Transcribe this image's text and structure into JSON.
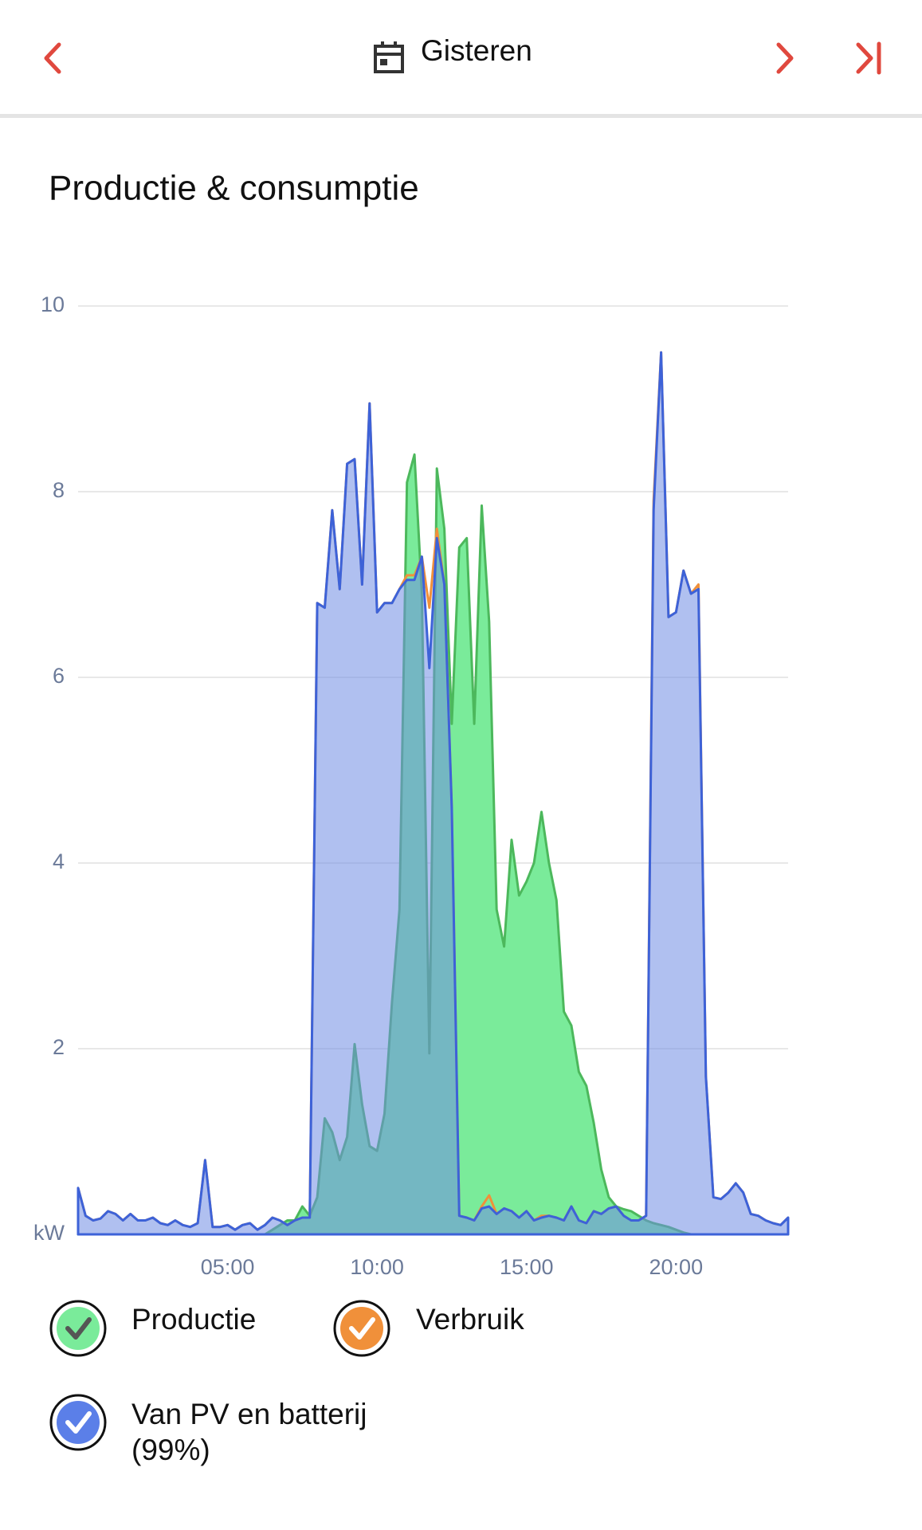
{
  "header": {
    "title": "Gisteren"
  },
  "chart_data": {
    "type": "area",
    "title": "Productie & consumptie",
    "x": [
      0,
      0.25,
      0.5,
      0.75,
      1,
      1.25,
      1.5,
      1.75,
      2,
      2.25,
      2.5,
      2.75,
      3,
      3.25,
      3.5,
      3.75,
      4,
      4.25,
      4.5,
      4.75,
      5,
      5.25,
      5.5,
      5.75,
      6,
      6.25,
      6.5,
      6.75,
      7,
      7.25,
      7.5,
      7.75,
      8,
      8.25,
      8.5,
      8.75,
      9,
      9.25,
      9.5,
      9.75,
      10,
      10.25,
      10.5,
      10.75,
      11,
      11.25,
      11.5,
      11.75,
      12,
      12.25,
      12.5,
      12.75,
      13,
      13.25,
      13.5,
      13.75,
      14,
      14.25,
      14.5,
      14.75,
      15,
      15.25,
      15.5,
      15.75,
      16,
      16.25,
      16.5,
      16.75,
      17,
      17.25,
      17.5,
      17.75,
      18,
      18.25,
      18.5,
      18.75,
      19,
      19.25,
      19.5,
      19.75,
      20,
      20.25,
      20.5,
      20.75,
      21,
      21.25,
      21.5,
      21.75,
      22,
      22.25,
      22.5,
      22.75,
      23,
      23.25,
      23.5,
      23.75
    ],
    "series": [
      {
        "name": "Productie",
        "color": "#4cb85c",
        "fill": "#7aeb9a",
        "values": [
          0,
          0,
          0,
          0,
          0,
          0,
          0,
          0,
          0,
          0,
          0,
          0,
          0,
          0,
          0,
          0,
          0,
          0,
          0,
          0,
          0,
          0,
          0,
          0,
          0,
          0,
          0.05,
          0.1,
          0.15,
          0.15,
          0.3,
          0.2,
          0.4,
          1.25,
          1.1,
          0.8,
          1.05,
          2.05,
          1.4,
          0.95,
          0.9,
          1.3,
          2.5,
          3.5,
          8.1,
          8.4,
          6.9,
          1.95,
          8.25,
          7.6,
          5.5,
          7.4,
          7.5,
          5.5,
          7.85,
          6.6,
          3.5,
          3.1,
          4.25,
          3.65,
          3.8,
          4.0,
          4.55,
          4.0,
          3.6,
          2.4,
          2.25,
          1.75,
          1.6,
          1.2,
          0.7,
          0.4,
          0.3,
          0.27,
          0.25,
          0.2,
          0.15,
          0.12,
          0.1,
          0.08,
          0.05,
          0.02,
          0,
          0,
          0,
          0,
          0,
          0,
          0,
          0,
          0,
          0,
          0,
          0,
          0,
          0
        ]
      },
      {
        "name": "Verbruik",
        "color": "#f0903a",
        "values": [
          0.5,
          0.2,
          0.15,
          0.17,
          0.25,
          0.22,
          0.15,
          0.22,
          0.15,
          0.15,
          0.18,
          0.12,
          0.1,
          0.15,
          0.1,
          0.08,
          0.12,
          0.8,
          0.08,
          0.08,
          0.1,
          0.05,
          0.1,
          0.12,
          0.05,
          0.1,
          0.18,
          0.15,
          0.1,
          0.15,
          0.18,
          0.18,
          6.8,
          6.75,
          7.8,
          6.95,
          8.3,
          8.35,
          7.0,
          8.95,
          6.7,
          6.8,
          6.8,
          6.95,
          7.1,
          7.1,
          7.3,
          6.75,
          7.6,
          7.0,
          4.6,
          0.2,
          0.18,
          0.15,
          0.3,
          0.42,
          0.22,
          0.28,
          0.25,
          0.18,
          0.25,
          0.15,
          0.2,
          0.2,
          0.18,
          0.15,
          0.3,
          0.15,
          0.12,
          0.25,
          0.22,
          0.28,
          0.3,
          0.2,
          0.15,
          0.15,
          0.2,
          7.9,
          9.5,
          6.65,
          6.7,
          7.15,
          6.9,
          7.0,
          1.7,
          0.4,
          0.38,
          0.45,
          0.55,
          0.45,
          0.22,
          0.2,
          0.15,
          0.12,
          0.1,
          0.18
        ]
      },
      {
        "name": "Van PV en batterij (99%)",
        "color": "#3d62d8",
        "fill": "rgba(112,140,228,0.55)",
        "values": [
          0.5,
          0.2,
          0.15,
          0.17,
          0.25,
          0.22,
          0.15,
          0.22,
          0.15,
          0.15,
          0.18,
          0.12,
          0.1,
          0.15,
          0.1,
          0.08,
          0.12,
          0.8,
          0.08,
          0.08,
          0.1,
          0.05,
          0.1,
          0.12,
          0.05,
          0.1,
          0.18,
          0.15,
          0.1,
          0.15,
          0.18,
          0.18,
          6.8,
          6.75,
          7.8,
          6.95,
          8.3,
          8.35,
          7.0,
          8.95,
          6.7,
          6.8,
          6.8,
          6.95,
          7.05,
          7.05,
          7.3,
          6.1,
          7.5,
          7.0,
          4.6,
          0.2,
          0.18,
          0.15,
          0.28,
          0.3,
          0.22,
          0.28,
          0.25,
          0.18,
          0.25,
          0.15,
          0.18,
          0.2,
          0.18,
          0.15,
          0.3,
          0.15,
          0.12,
          0.25,
          0.22,
          0.28,
          0.3,
          0.2,
          0.15,
          0.15,
          0.2,
          7.8,
          9.5,
          6.65,
          6.7,
          7.15,
          6.9,
          6.95,
          1.7,
          0.4,
          0.38,
          0.45,
          0.55,
          0.45,
          0.22,
          0.2,
          0.15,
          0.12,
          0.1,
          0.18
        ]
      }
    ],
    "xlim": [
      0,
      23.75
    ],
    "xticks": [
      {
        "value": 5,
        "label": "05:00"
      },
      {
        "value": 10,
        "label": "10:00"
      },
      {
        "value": 15,
        "label": "15:00"
      },
      {
        "value": 20,
        "label": "20:00"
      }
    ],
    "ylim": [
      0,
      10
    ],
    "yticks": [
      {
        "value": 0,
        "label": "kW"
      },
      2,
      4,
      6,
      8,
      10
    ],
    "grid": true
  }
}
